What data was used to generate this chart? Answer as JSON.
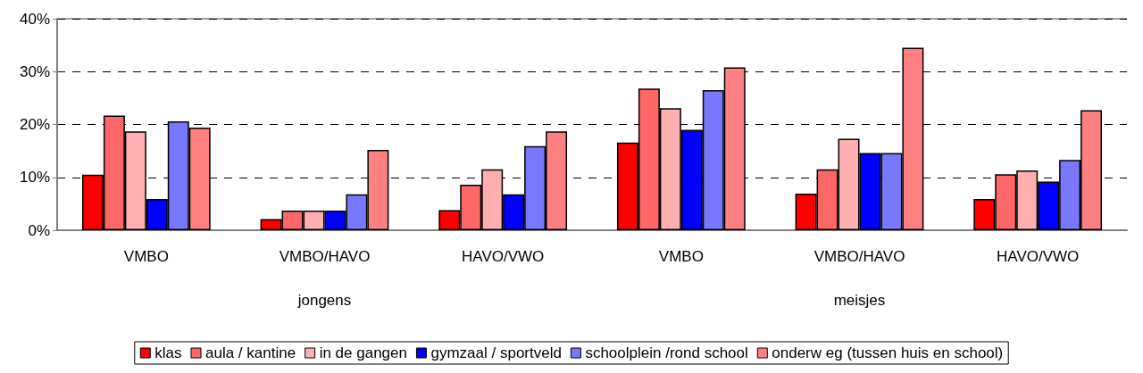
{
  "chart_data": {
    "type": "bar",
    "categories": [
      "VMBO",
      "VMBO/HAVO",
      "HAVO/VWO",
      "VMBO",
      "VMBO/HAVO",
      "HAVO/VWO"
    ],
    "annotations": [
      "jongens",
      "meisjes"
    ],
    "series": [
      {
        "name": "klas",
        "color": "#ff0000",
        "values": [
          10.5,
          2.1,
          3.8,
          16.6,
          6.9,
          5.9
        ]
      },
      {
        "name": "aula / kantine",
        "color": "#ff6666",
        "values": [
          21.7,
          3.7,
          8.6,
          26.8,
          11.5,
          10.6
        ]
      },
      {
        "name": "in de gangen",
        "color": "#ffafaf",
        "values": [
          18.7,
          3.7,
          11.5,
          23.1,
          17.3,
          11.3
        ]
      },
      {
        "name": "gymzaal / sportveld",
        "color": "#0000ff",
        "values": [
          5.9,
          3.7,
          6.8,
          19.0,
          14.6,
          9.2
        ]
      },
      {
        "name": "schoolplein /rond school",
        "color": "#7878ff",
        "values": [
          20.6,
          6.8,
          15.9,
          26.5,
          14.6,
          13.3
        ]
      },
      {
        "name": "onderw eg (tussen huis en school)",
        "color": "#ff8080",
        "values": [
          19.4,
          15.2,
          18.7,
          30.8,
          34.5,
          22.7
        ]
      }
    ],
    "ylim": [
      0,
      40
    ],
    "yticks": [
      {
        "value": 0,
        "label": "0%"
      },
      {
        "value": 10,
        "label": "10%"
      },
      {
        "value": 20,
        "label": "20%"
      },
      {
        "value": 30,
        "label": "30%"
      },
      {
        "value": 40,
        "label": "40%"
      }
    ],
    "grid": "y",
    "legend": "bottom"
  }
}
